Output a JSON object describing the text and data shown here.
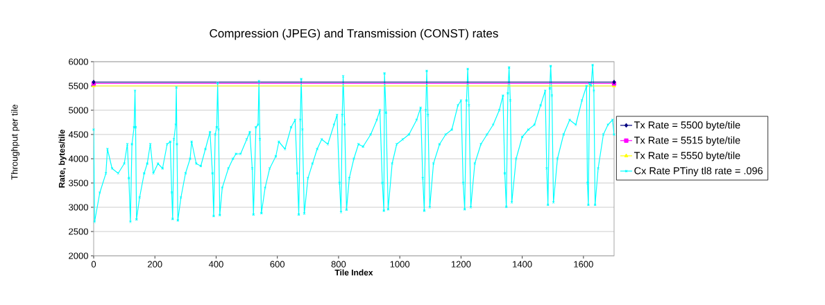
{
  "chart_data": {
    "type": "line",
    "title": "Compression (JPEG) and Transmission (CONST) rates",
    "xlabel": "Tile Index",
    "ylabel": "Rate, bytes/tile",
    "annotations": [
      "Throughput per tile"
    ],
    "xlim": [
      0,
      1700
    ],
    "ylim": [
      2000,
      6000
    ],
    "xticks": [
      0,
      200,
      400,
      600,
      800,
      1000,
      1200,
      1400,
      1600
    ],
    "yticks": [
      2000,
      2500,
      3000,
      3500,
      4000,
      4500,
      5000,
      5500,
      6000
    ],
    "grid": "y",
    "legend": "right",
    "line_style": "solid",
    "series": [
      {
        "name": "Tx Rate = 5500 byte/tile",
        "color": "#000080",
        "marker": "diamond",
        "x": [
          0,
          1700
        ],
        "values": [
          5580,
          5580
        ]
      },
      {
        "name": "Tx Rate = 5515 byte/tile",
        "color": "#ff00ff",
        "marker": "square",
        "x": [
          0,
          1700
        ],
        "values": [
          5550,
          5550
        ]
      },
      {
        "name": "Tx Rate = 5550 byte/tile",
        "color": "#ffff00",
        "marker": "triangle",
        "x": [
          0,
          1700
        ],
        "values": [
          5500,
          5500
        ]
      },
      {
        "name": "Cx Rate PTiny tl8 rate = .096",
        "color": "#00ffff",
        "marker": "cross",
        "x": [
          0,
          3,
          20,
          40,
          45,
          60,
          80,
          100,
          110,
          115,
          120,
          125,
          132,
          135,
          137,
          140,
          150,
          165,
          175,
          185,
          195,
          210,
          225,
          240,
          250,
          255,
          258,
          262,
          268,
          270,
          272,
          275,
          285,
          300,
          315,
          320,
          335,
          350,
          365,
          380,
          388,
          392,
          397,
          402,
          405,
          408,
          412,
          420,
          440,
          455,
          465,
          480,
          500,
          510,
          518,
          522,
          530,
          537,
          540,
          543,
          548,
          560,
          575,
          595,
          605,
          625,
          645,
          658,
          665,
          670,
          675,
          678,
          682,
          688,
          700,
          715,
          730,
          745,
          765,
          785,
          795,
          803,
          808,
          812,
          815,
          820,
          826,
          835,
          850,
          865,
          880,
          905,
          925,
          935,
          943,
          948,
          950,
          955,
          962,
          975,
          990,
          1010,
          1030,
          1055,
          1068,
          1075,
          1080,
          1085,
          1088,
          1092,
          1098,
          1110,
          1130,
          1150,
          1170,
          1190,
          1200,
          1207,
          1212,
          1218,
          1222,
          1226,
          1232,
          1245,
          1265,
          1285,
          1305,
          1325,
          1337,
          1343,
          1348,
          1353,
          1357,
          1361,
          1366,
          1380,
          1400,
          1420,
          1440,
          1460,
          1475,
          1480,
          1484,
          1490,
          1493,
          1497,
          1502,
          1515,
          1535,
          1555,
          1575,
          1595,
          1610,
          1613,
          1616,
          1620,
          1625,
          1630,
          1634,
          1638,
          1648,
          1665,
          1680,
          1695,
          1700
        ],
        "values": [
          4600,
          2700,
          3300,
          3700,
          4200,
          3800,
          3700,
          3900,
          4300,
          3600,
          2700,
          4300,
          4650,
          5400,
          4650,
          2750,
          3200,
          3700,
          3900,
          4300,
          3700,
          3900,
          3800,
          4300,
          4350,
          3300,
          2760,
          4400,
          4700,
          5470,
          4300,
          2730,
          3200,
          3700,
          4000,
          4350,
          3900,
          3850,
          4200,
          4550,
          3700,
          2820,
          4500,
          4650,
          5560,
          4600,
          2840,
          3400,
          3800,
          4000,
          4100,
          4100,
          4400,
          4550,
          3800,
          2850,
          4650,
          4700,
          5600,
          4400,
          2880,
          3400,
          3800,
          4050,
          4350,
          4200,
          4650,
          4800,
          3700,
          2850,
          4800,
          5640,
          4600,
          2870,
          3600,
          3900,
          4200,
          4400,
          4300,
          4700,
          4900,
          3500,
          2900,
          4900,
          5700,
          4700,
          2950,
          3600,
          4000,
          4300,
          4250,
          4500,
          4800,
          5000,
          3500,
          2930,
          5760,
          4950,
          2960,
          3900,
          4300,
          4400,
          4500,
          4800,
          5050,
          3600,
          2930,
          5000,
          5810,
          4900,
          3000,
          3900,
          4300,
          4500,
          4600,
          5100,
          5200,
          3500,
          2960,
          5200,
          5850,
          5100,
          3000,
          3900,
          4300,
          4500,
          4700,
          5000,
          5300,
          3700,
          3010,
          5350,
          5880,
          5200,
          3100,
          4000,
          4450,
          4600,
          4700,
          5100,
          5400,
          3800,
          3050,
          5450,
          5910,
          5300,
          3100,
          4000,
          4500,
          4800,
          4700,
          5200,
          5500,
          3500,
          3050,
          5550,
          5500,
          5930,
          5400,
          3050,
          3800,
          4500,
          4700,
          4800,
          4500
        ]
      }
    ]
  }
}
